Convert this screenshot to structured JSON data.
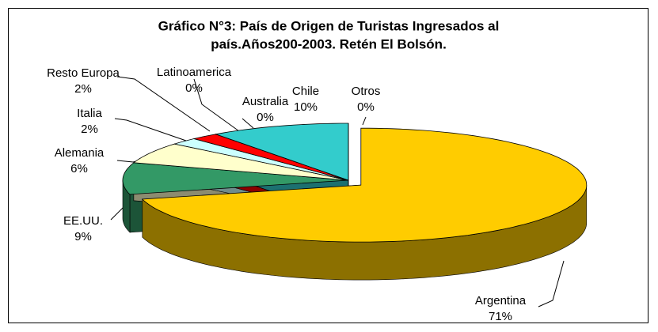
{
  "chart_data": {
    "type": "pie3d",
    "title": [
      "Gráfico N°3: País de Origen de Turistas Ingresados al",
      "país.Años200-2003. Retén  El Bolsón."
    ],
    "categories": [
      "Argentina",
      "EE.UU.",
      "Alemania",
      "Italia",
      "Resto Europa",
      "Latinoamerica",
      "Australia",
      "Chile",
      "Otros"
    ],
    "values": [
      71,
      9,
      6,
      2,
      2,
      0,
      0,
      10,
      0
    ],
    "value_labels": [
      "71%",
      "9%",
      "6%",
      "2%",
      "2%",
      "0%",
      "0%",
      "10%",
      "0%"
    ],
    "colors": [
      "#ffcc00",
      "#339966",
      "#ffffcc",
      "#ccffff",
      "#ff0000",
      "#000080",
      "#993366",
      "#33cccc",
      "#ffffff"
    ],
    "exploded": [
      "Argentina"
    ]
  }
}
